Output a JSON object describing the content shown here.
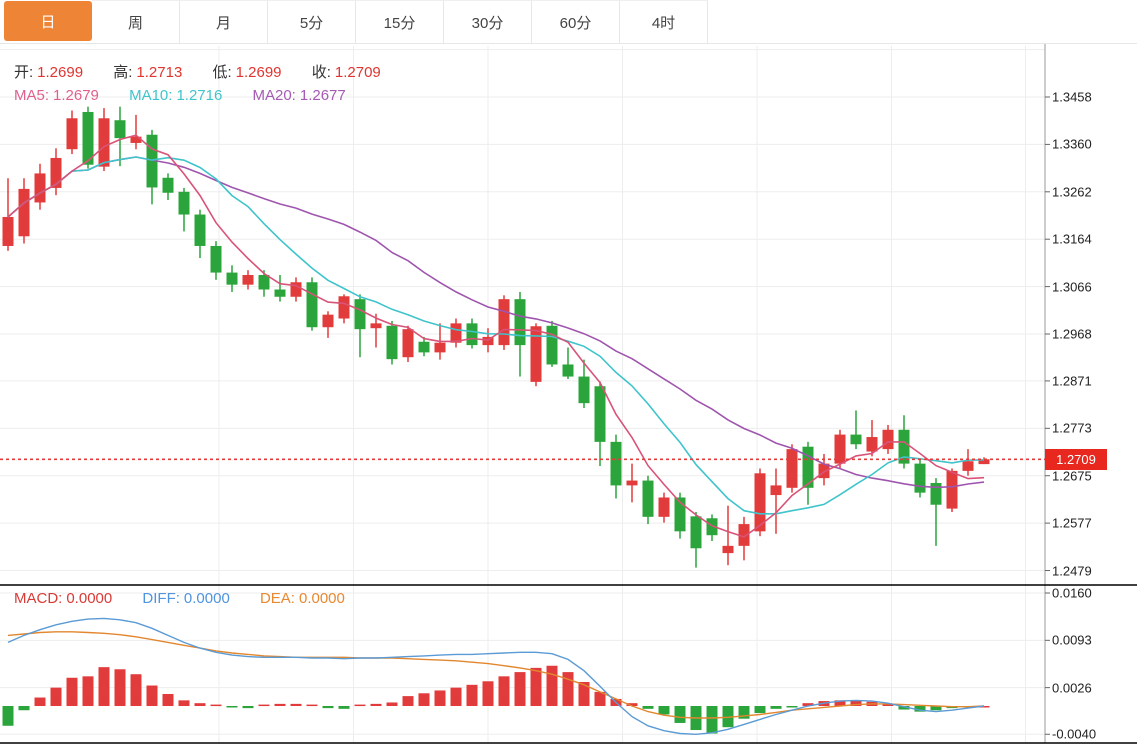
{
  "tabs": {
    "active_index": 0,
    "items": [
      "日",
      "周",
      "月",
      "5分",
      "15分",
      "30分",
      "60分",
      "4时"
    ]
  },
  "ohlc": {
    "open_label": "开:",
    "open": "1.2699",
    "high_label": "高:",
    "high": "1.2713",
    "low_label": "低:",
    "low": "1.2699",
    "close_label": "收:",
    "close": "1.2709"
  },
  "indicators": {
    "ma5_label": "MA5:",
    "ma5": "1.2679",
    "ma10_label": "MA10:",
    "ma10": "1.2716",
    "ma20_label": "MA20:",
    "ma20": "1.2677"
  },
  "macd_panel": {
    "macd_label": "MACD:",
    "macd": "0.0000",
    "diff_label": "DIFF:",
    "diff": "0.0000",
    "dea_label": "DEA:",
    "dea": "0.0000"
  },
  "y_axis": {
    "price_labels": [
      "1.3458",
      "1.3360",
      "1.3262",
      "1.3164",
      "1.3066",
      "1.2968",
      "1.2871",
      "1.2773",
      "1.2675",
      "1.2577",
      "1.2479"
    ],
    "macd_labels": [
      "0.0160",
      "0.0093",
      "0.0026",
      "-0.0040"
    ],
    "current_price": "1.2709"
  },
  "colors": {
    "up": "#e23b3b",
    "down": "#2ca43c",
    "ma5": "#d95379",
    "ma10": "#3fc4cb",
    "ma20": "#9f55ae",
    "diff": "#5b9bd5",
    "dea": "#e2872f",
    "grid": "#ededed",
    "axis_border": "#999999",
    "dotted_line": "#e23b3b",
    "price_tag_bg": "#e8281e",
    "tab_active_bg": "#ee8435",
    "separator": "#000000"
  },
  "chart_data": [
    {
      "type": "candlestick",
      "title": "Daily price chart (red = up, green = down)",
      "price_ticks": [
        1.3458,
        1.336,
        1.3262,
        1.3164,
        1.3066,
        1.2968,
        1.2871,
        1.2773,
        1.2675,
        1.2577,
        1.2479
      ],
      "current_price": 1.2709,
      "ma_periods": [
        5,
        10,
        20
      ],
      "candles_ohlc": [
        [
          1.315,
          1.329,
          1.314,
          1.321
        ],
        [
          1.317,
          1.329,
          1.3155,
          1.3268
        ],
        [
          1.324,
          1.332,
          1.3225,
          1.33
        ],
        [
          1.327,
          1.3352,
          1.3255,
          1.3332
        ],
        [
          1.335,
          1.343,
          1.334,
          1.3414
        ],
        [
          1.3427,
          1.3438,
          1.331,
          1.3318
        ],
        [
          1.3314,
          1.3435,
          1.3305,
          1.3414
        ],
        [
          1.341,
          1.3438,
          1.3315,
          1.3373
        ],
        [
          1.3363,
          1.3421,
          1.335,
          1.3376
        ],
        [
          1.338,
          1.339,
          1.3236,
          1.3271
        ],
        [
          1.3291,
          1.33,
          1.3245,
          1.326
        ],
        [
          1.3262,
          1.327,
          1.318,
          1.3215
        ],
        [
          1.3215,
          1.3225,
          1.3125,
          1.315
        ],
        [
          1.315,
          1.316,
          1.308,
          1.3095
        ],
        [
          1.3095,
          1.311,
          1.3055,
          1.307
        ],
        [
          1.307,
          1.31,
          1.306,
          1.309
        ],
        [
          1.309,
          1.31,
          1.3045,
          1.306
        ],
        [
          1.306,
          1.309,
          1.3035,
          1.3045
        ],
        [
          1.3045,
          1.3085,
          1.3035,
          1.3075
        ],
        [
          1.3075,
          1.3085,
          1.2975,
          1.2982
        ],
        [
          1.2982,
          1.3015,
          1.296,
          1.3008
        ],
        [
          1.3,
          1.305,
          1.299,
          1.3046
        ],
        [
          1.304,
          1.305,
          1.292,
          1.2978
        ],
        [
          1.298,
          1.301,
          1.294,
          1.299
        ],
        [
          1.2985,
          1.2995,
          1.2905,
          1.2916
        ],
        [
          1.292,
          1.2985,
          1.291,
          1.2978
        ],
        [
          1.2952,
          1.2962,
          1.2922,
          1.293
        ],
        [
          1.293,
          1.299,
          1.2915,
          1.295
        ],
        [
          1.295,
          1.3,
          1.294,
          1.299
        ],
        [
          1.299,
          1.3,
          1.2938,
          1.2945
        ],
        [
          1.2945,
          1.298,
          1.293,
          1.2962
        ],
        [
          1.2945,
          1.3048,
          1.2935,
          1.304
        ],
        [
          1.304,
          1.3055,
          1.288,
          1.2945
        ],
        [
          1.2869,
          1.299,
          1.286,
          1.2984
        ],
        [
          1.2985,
          1.2995,
          1.29,
          1.2905
        ],
        [
          1.2905,
          1.294,
          1.2875,
          1.288
        ],
        [
          1.288,
          1.2915,
          1.2815,
          1.2825
        ],
        [
          1.286,
          1.287,
          1.2695,
          1.2745
        ],
        [
          1.2745,
          1.276,
          1.2628,
          1.2655
        ],
        [
          1.2655,
          1.27,
          1.262,
          1.2665
        ],
        [
          1.2665,
          1.2675,
          1.2575,
          1.259
        ],
        [
          1.259,
          1.264,
          1.2578,
          1.263
        ],
        [
          1.263,
          1.264,
          1.2545,
          1.256
        ],
        [
          1.2591,
          1.26,
          1.2485,
          1.2525
        ],
        [
          1.2587,
          1.2595,
          1.254,
          1.2552
        ],
        [
          1.2515,
          1.2613,
          1.249,
          1.253
        ],
        [
          1.253,
          1.259,
          1.25,
          1.2575
        ],
        [
          1.256,
          1.269,
          1.255,
          1.268
        ],
        [
          1.2635,
          1.269,
          1.2555,
          1.2655
        ],
        [
          1.265,
          1.274,
          1.264,
          1.273
        ],
        [
          1.2735,
          1.2745,
          1.2615,
          1.265
        ],
        [
          1.267,
          1.272,
          1.2655,
          1.27
        ],
        [
          1.27,
          1.277,
          1.269,
          1.276
        ],
        [
          1.276,
          1.281,
          1.273,
          1.274
        ],
        [
          1.2725,
          1.279,
          1.2715,
          1.2755
        ],
        [
          1.273,
          1.278,
          1.272,
          1.277
        ],
        [
          1.277,
          1.28,
          1.269,
          1.27
        ],
        [
          1.27,
          1.271,
          1.263,
          1.264
        ],
        [
          1.266,
          1.267,
          1.253,
          1.2615
        ],
        [
          1.2607,
          1.269,
          1.26,
          1.2685
        ],
        [
          1.2685,
          1.273,
          1.2675,
          1.2705
        ],
        [
          1.2699,
          1.2713,
          1.2699,
          1.2709
        ]
      ]
    },
    {
      "type": "bar",
      "title": "MACD sub-chart (histogram + DIFF/DEA lines)",
      "ticks": [
        0.016,
        0.0093,
        0.0026,
        -0.004
      ],
      "hist": [
        -0.0028,
        -0.0006,
        0.0012,
        0.0026,
        0.004,
        0.0042,
        0.0055,
        0.0052,
        0.0045,
        0.0029,
        0.0017,
        0.0008,
        0.0004,
        0.0002,
        -0.0002,
        -0.0003,
        0.0002,
        0.0003,
        0.0003,
        0.0002,
        -0.0003,
        -0.0004,
        0.0002,
        0.0003,
        0.0005,
        0.0014,
        0.0018,
        0.0022,
        0.0026,
        0.003,
        0.0035,
        0.0042,
        0.0048,
        0.0054,
        0.0057,
        0.0048,
        0.0034,
        0.002,
        0.001,
        0.0004,
        -0.0004,
        -0.0012,
        -0.0024,
        -0.0034,
        -0.0039,
        -0.003,
        -0.0018,
        -0.001,
        -0.0004,
        -0.0002,
        0.0004,
        0.0007,
        0.0008,
        0.0008,
        0.0006,
        0.0003,
        -0.0005,
        -0.0008,
        -0.0006,
        -0.0003,
        -0.0001,
        0.0
      ],
      "diff": [
        0.009,
        0.01,
        0.0108,
        0.0115,
        0.012,
        0.0123,
        0.0124,
        0.0122,
        0.0118,
        0.011,
        0.01,
        0.009,
        0.0082,
        0.0076,
        0.0072,
        0.007,
        0.0069,
        0.0069,
        0.0069,
        0.0068,
        0.0068,
        0.0067,
        0.0068,
        0.0068,
        0.0069,
        0.007,
        0.0071,
        0.0072,
        0.0073,
        0.0073,
        0.0074,
        0.0075,
        0.0076,
        0.0076,
        0.0074,
        0.0066,
        0.005,
        0.0028,
        0.0005,
        -0.0015,
        -0.0028,
        -0.0035,
        -0.0039,
        -0.004,
        -0.0038,
        -0.0033,
        -0.0026,
        -0.0019,
        -0.0012,
        -0.0006,
        0.0,
        0.0004,
        0.0007,
        0.0008,
        0.0007,
        0.0004,
        -0.0001,
        -0.0006,
        -0.0008,
        -0.0006,
        -0.0003,
        0.0
      ],
      "dea": [
        0.01,
        0.0102,
        0.0104,
        0.0105,
        0.0105,
        0.0104,
        0.0103,
        0.0101,
        0.0098,
        0.0094,
        0.009,
        0.0086,
        0.0082,
        0.0078,
        0.0075,
        0.0073,
        0.0071,
        0.007,
        0.0069,
        0.0069,
        0.0069,
        0.0069,
        0.0068,
        0.0068,
        0.0068,
        0.0067,
        0.0066,
        0.0065,
        0.0064,
        0.0062,
        0.006,
        0.0057,
        0.0054,
        0.005,
        0.0045,
        0.0038,
        0.003,
        0.002,
        0.001,
        0.0,
        -0.0008,
        -0.0013,
        -0.0016,
        -0.0017,
        -0.0017,
        -0.0016,
        -0.0014,
        -0.0012,
        -0.0009,
        -0.0006,
        -0.0004,
        -0.0002,
        0.0,
        0.0002,
        0.0003,
        0.0003,
        0.0002,
        0.0001,
        0.0,
        -0.0001,
        -0.0001,
        0.0
      ]
    }
  ]
}
